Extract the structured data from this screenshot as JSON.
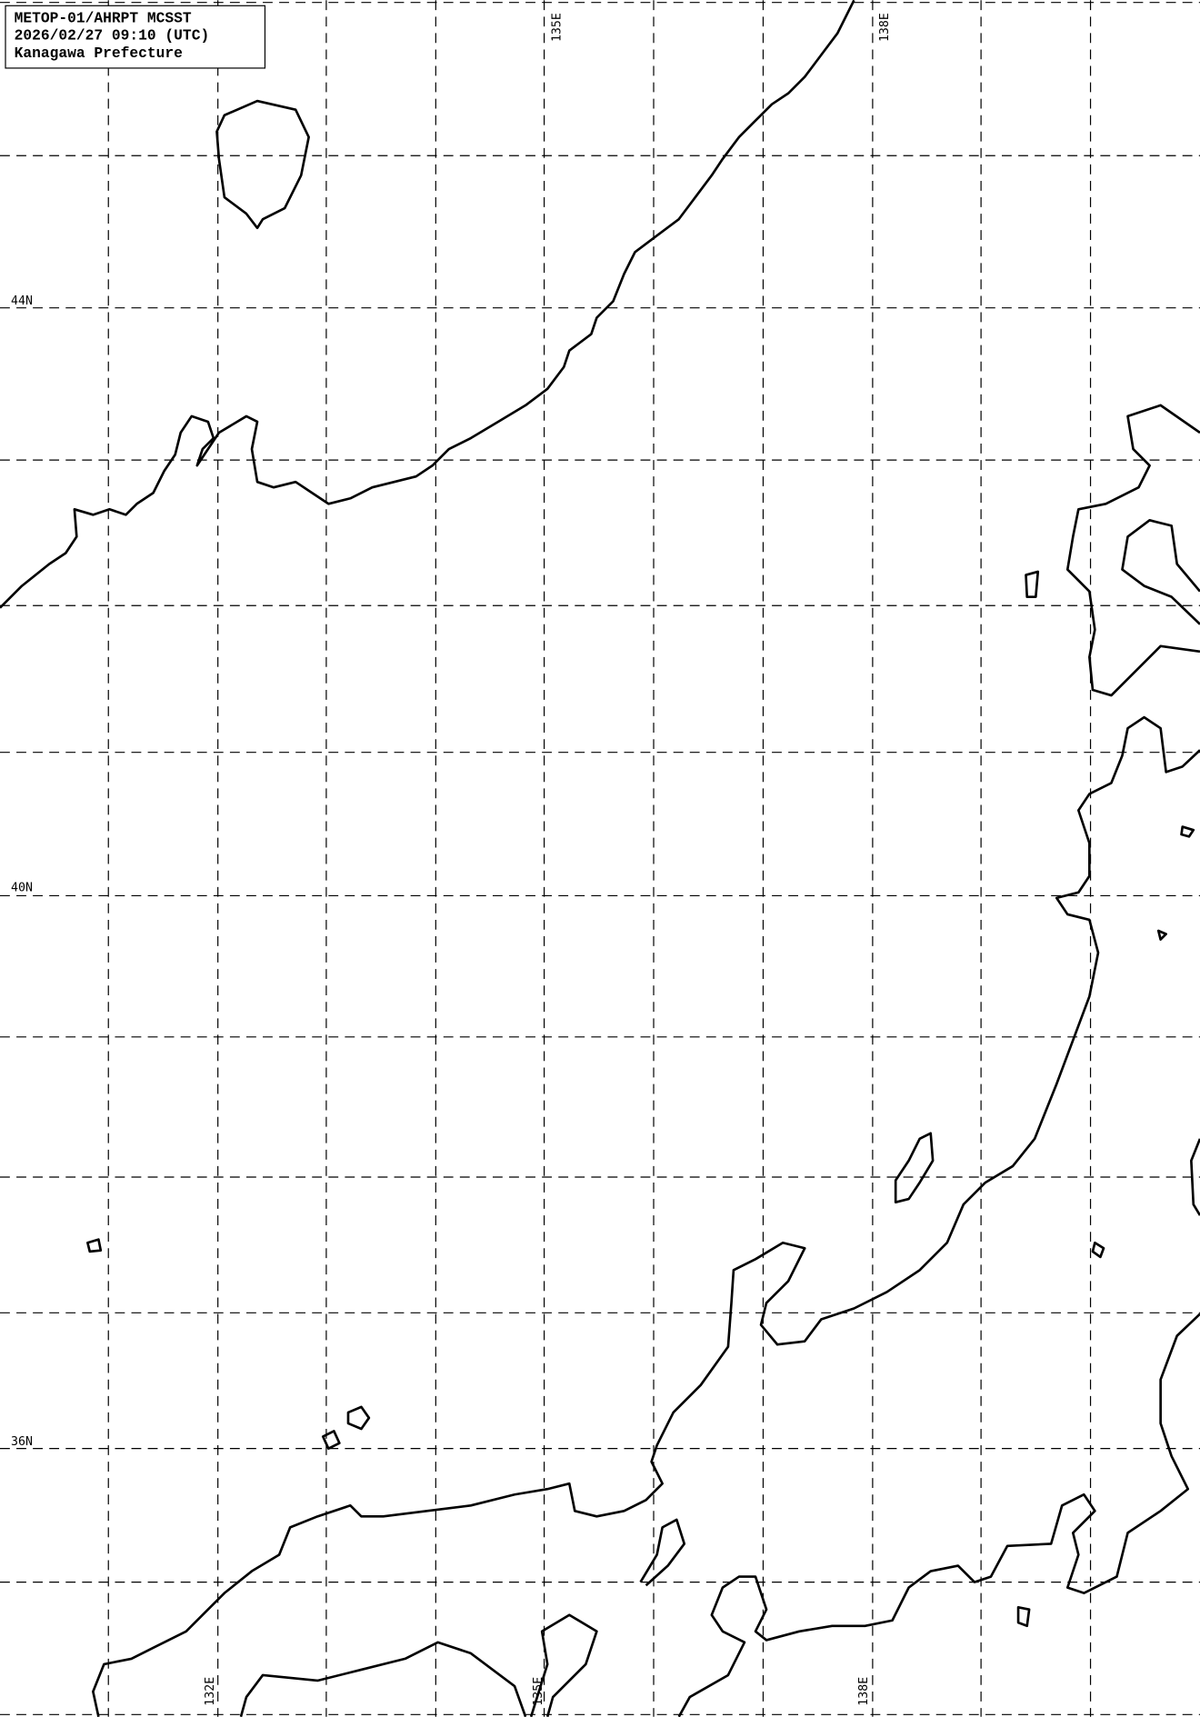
{
  "info_box": {
    "line1": "METOP-01/AHRPT MCSST",
    "line2": "2026/02/27 09:10 (UTC)",
    "line3": "Kanagawa Prefecture"
  },
  "latitude_labels": [
    "44N",
    "40N",
    "36N"
  ],
  "longitude_labels_top": [
    "135E",
    "138E"
  ],
  "longitude_labels_bottom": [
    "132E",
    "135E",
    "138E"
  ],
  "colors": {
    "background": "#ffffff",
    "lines": "#000000"
  }
}
